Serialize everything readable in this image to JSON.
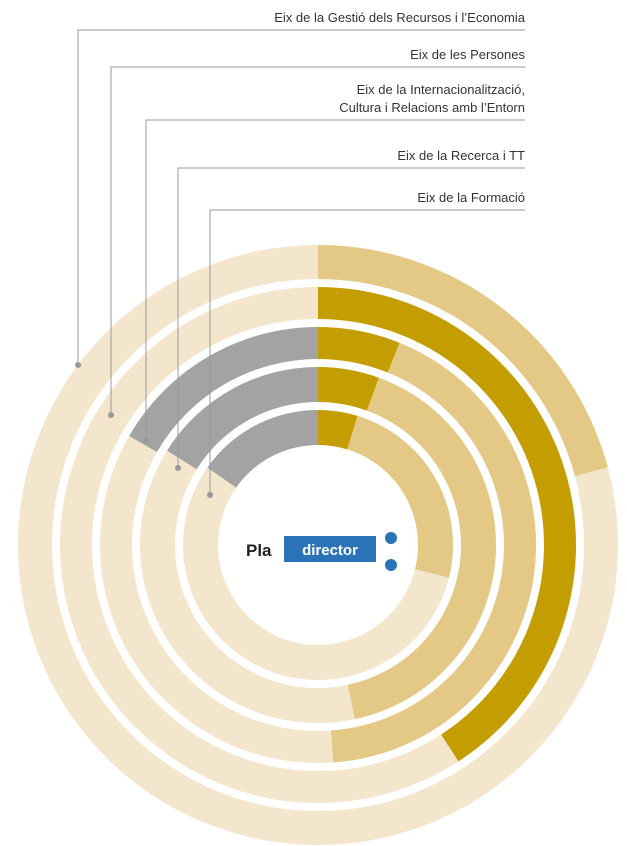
{
  "logo": {
    "prefix": "Pla",
    "name": "director"
  },
  "rings": [
    {
      "label": [
        "Eix de la Gestió dels Recursos i l’Economia"
      ],
      "segments": [
        {
          "start": 0,
          "end": 75,
          "color": "#e3c985"
        }
      ]
    },
    {
      "label": [
        "Eix de les Persones"
      ],
      "segments": [
        {
          "start": 0,
          "end": 147,
          "color": "#c49e00"
        }
      ]
    },
    {
      "label": [
        "Eix de la Internacionalització,",
        "Cultura i Relacions amb l’Entorn"
      ],
      "segments": [
        {
          "start": 0,
          "end": 22,
          "color": "#c49e00"
        },
        {
          "start": 22,
          "end": 176,
          "color": "#e3c985"
        },
        {
          "start": 300,
          "end": 360,
          "color": "#a3a3a3"
        }
      ]
    },
    {
      "label": [
        "Eix de la Recerca i TT"
      ],
      "segments": [
        {
          "start": 0,
          "end": 20,
          "color": "#c49e00"
        },
        {
          "start": 20,
          "end": 168,
          "color": "#e3c985"
        },
        {
          "start": 302,
          "end": 360,
          "color": "#a3a3a3"
        }
      ]
    },
    {
      "label": [
        "Eix de la Formació"
      ],
      "segments": [
        {
          "start": 0,
          "end": 17,
          "color": "#c49e00"
        },
        {
          "start": 17,
          "end": 104,
          "color": "#e3c985"
        },
        {
          "start": 305,
          "end": 360,
          "color": "#a3a3a3"
        }
      ]
    }
  ]
}
